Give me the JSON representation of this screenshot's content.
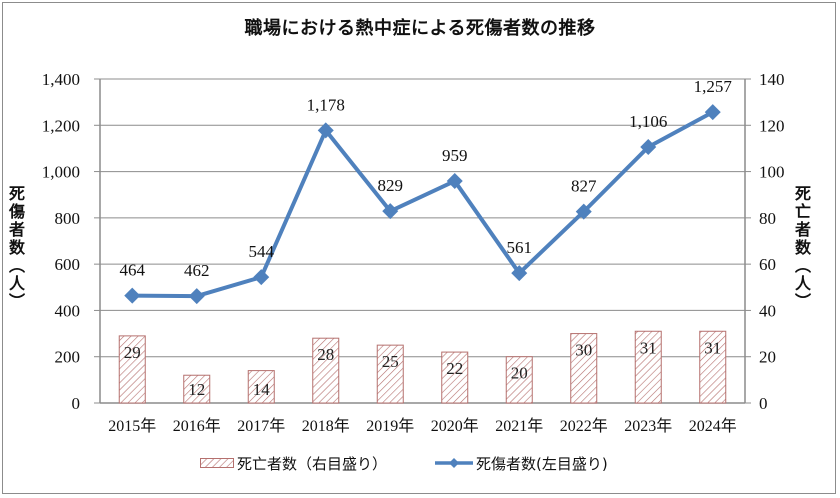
{
  "chart_data": {
    "type": "bar+line",
    "title": "職場における熱中症による死傷者数の推移",
    "categories": [
      "2015年",
      "2016年",
      "2017年",
      "2018年",
      "2019年",
      "2020年",
      "2021年",
      "2022年",
      "2023年",
      "2024年"
    ],
    "series": [
      {
        "name": "死亡者数（右目盛り）",
        "type": "bar",
        "axis": "right",
        "values": [
          29,
          12,
          14,
          28,
          25,
          22,
          20,
          30,
          31,
          31
        ],
        "labels": [
          "29",
          "12",
          "14",
          "28",
          "25",
          "22",
          "20",
          "30",
          "31",
          "31"
        ],
        "color": "#B5706E",
        "pattern": "diagonal-hatch"
      },
      {
        "name": "死傷者数(左目盛り)",
        "type": "line",
        "axis": "left",
        "values": [
          464,
          462,
          544,
          1178,
          829,
          959,
          561,
          827,
          1106,
          1257
        ],
        "labels": [
          "464",
          "462",
          "544",
          "1,178",
          "829",
          "959",
          "561",
          "827",
          "1,106",
          "1,257"
        ],
        "color": "#4F81BD",
        "marker": "diamond"
      }
    ],
    "ylabel": "死傷者数(人)",
    "y2label": "死亡者数(人)",
    "ylim": [
      0,
      1400
    ],
    "y2lim": [
      0,
      140
    ],
    "yticks": [
      "0",
      "200",
      "400",
      "600",
      "800",
      "1,000",
      "1,200",
      "1,400"
    ],
    "y2ticks": [
      "0",
      "20",
      "40",
      "60",
      "80",
      "100",
      "120",
      "140"
    ],
    "grid": true,
    "legend_position": "bottom"
  },
  "legend": {
    "bar_label": "死亡者数（右目盛り）",
    "line_label": "死傷者数(左目盛り)"
  }
}
